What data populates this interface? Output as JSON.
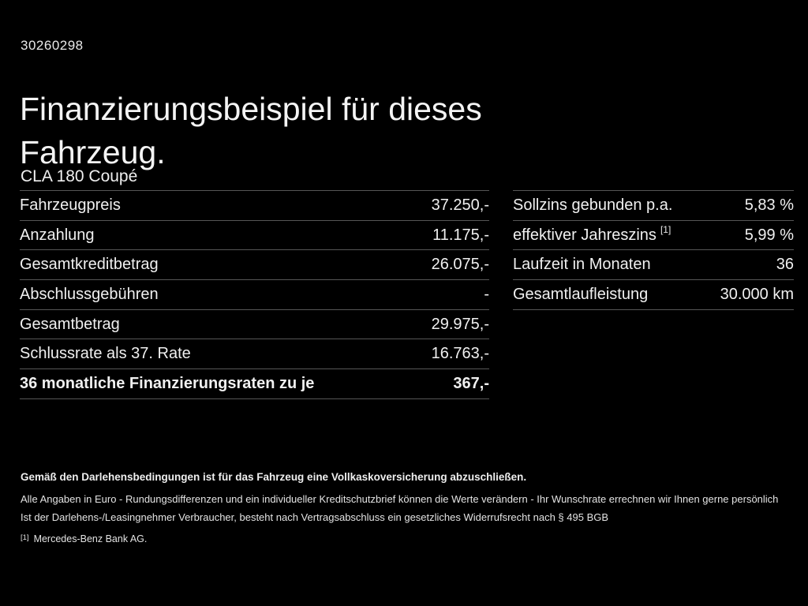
{
  "page": {
    "doc_number": "30260298",
    "title_line1": "Finanzierungsbeispiel für dieses",
    "title_line2": "Fahrzeug.",
    "model": "CLA 180 Coupé"
  },
  "finance_table": {
    "rows": [
      {
        "label": "Fahrzeugpreis",
        "value": "37.250,-",
        "bold": false
      },
      {
        "label": "Anzahlung",
        "value": "11.175,-",
        "bold": false
      },
      {
        "label": "Gesamtkreditbetrag",
        "value": "26.075,-",
        "bold": false
      },
      {
        "label": "Abschlussgebühren",
        "value": "-",
        "bold": false
      },
      {
        "label": "Gesamtbetrag",
        "value": "29.975,-",
        "bold": false
      },
      {
        "label": "Schlussrate als 37. Rate",
        "value": "16.763,-",
        "bold": false
      },
      {
        "label": "36 monatliche Finanzierungsraten zu je",
        "value": "367,-",
        "bold": true
      }
    ]
  },
  "conditions_table": {
    "rows": [
      {
        "label": "Sollzins gebunden p.a.",
        "value": "5,83 %",
        "bold": false
      },
      {
        "label": "effektiver Jahreszins",
        "label_superscript": "[1]",
        "value": "5,99 %",
        "bold": false
      },
      {
        "label": "Laufzeit in Monaten",
        "value": "36",
        "bold": false
      },
      {
        "label": "Gesamtlaufleistung",
        "value": "30.000 km",
        "bold": false
      }
    ]
  },
  "footer": {
    "insurance_note": "Gemäß den Darlehensbedingungen ist für das Fahrzeug eine Vollkaskoversicherung abzuschließen.",
    "disclaimer_line1": "Alle Angaben in Euro - Rundungsdifferenzen und ein individueller Kreditschutzbrief können die Werte verändern - Ihr Wunschrate errechnen wir Ihnen gerne persönlich",
    "disclaimer_line2": "Ist der Darlehens-/Leasingnehmer Verbraucher, besteht nach Vertragsabschluss ein gesetzliches Widerrufsrecht nach § 495 BGB",
    "footnote_marker": "[1]",
    "footnote_text": "Mercedes-Benz Bank AG."
  },
  "colors": {
    "background": "#000000",
    "text": "#f0f0f0",
    "separator": "#565656"
  }
}
